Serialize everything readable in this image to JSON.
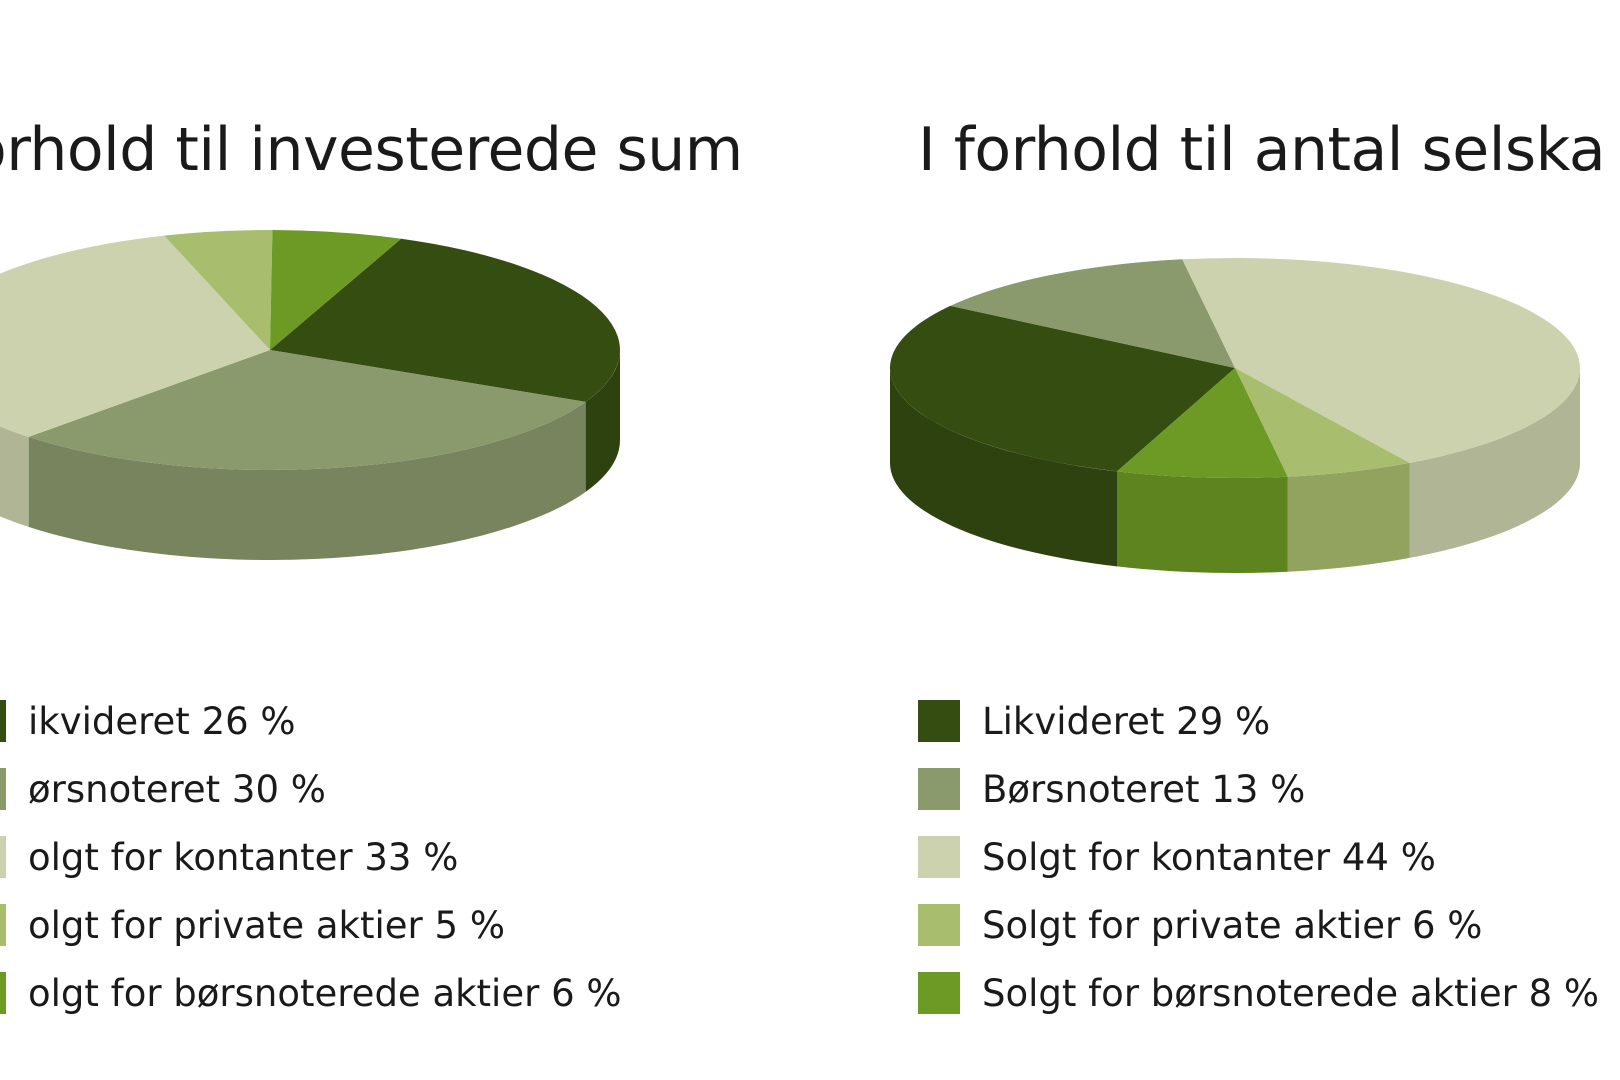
{
  "chart_data": [
    {
      "type": "pie",
      "title": "orhold til investerede sum",
      "slices": [
        {
          "label": "ikvideret 26 %",
          "value": 26,
          "color": "#364d12"
        },
        {
          "label": "ørsnoteret 30 %",
          "value": 30,
          "color": "#8a9a6c"
        },
        {
          "label": "olgt for kontanter 33 %",
          "value": 33,
          "color": "#cdd2ae"
        },
        {
          "label": "olgt for private aktier 5 %",
          "value": 5,
          "color": "#a9bd6e"
        },
        {
          "label": "olgt for børsnoterede aktier 6 %",
          "value": 6,
          "color": "#6c9a24"
        }
      ],
      "legend": "bottom",
      "style": "3d"
    },
    {
      "type": "pie",
      "title": "I forhold til antal selska",
      "slices": [
        {
          "label": "Likvideret 29 %",
          "value": 29,
          "color": "#364d12"
        },
        {
          "label": "Børsnoteret 13 %",
          "value": 13,
          "color": "#8a9a6c"
        },
        {
          "label": "Solgt for kontanter 44 %",
          "value": 44,
          "color": "#cdd2ae"
        },
        {
          "label": "Solgt for private aktier 6 %",
          "value": 6,
          "color": "#a9bd6e"
        },
        {
          "label": "Solgt for børsnoterede aktier 8 %",
          "value": 8,
          "color": "#6c9a24"
        }
      ],
      "legend": "bottom",
      "style": "3d"
    }
  ]
}
